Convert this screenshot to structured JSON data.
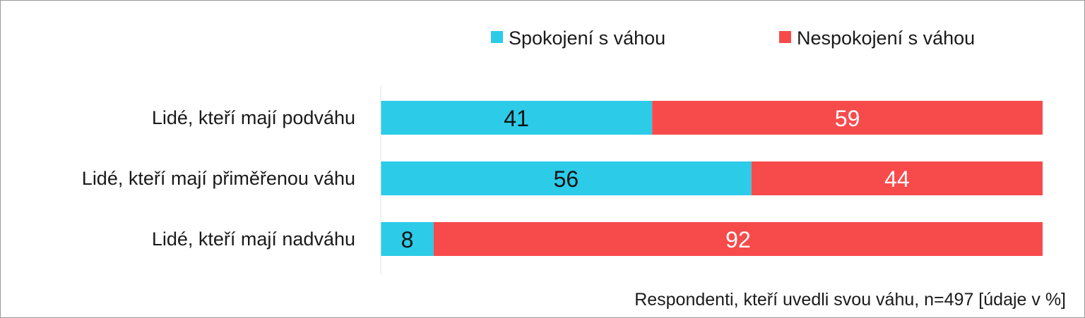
{
  "chart_data": {
    "type": "bar",
    "orientation": "horizontal",
    "stacked": true,
    "categories": [
      "Lidé, kteří mají podváhu",
      "Lidé, kteří mají přiměřenou váhu",
      "Lidé, kteří mají nadváhu"
    ],
    "series": [
      {
        "name": "Spokojení s váhou",
        "values": [
          41,
          56,
          8
        ],
        "color": "#2ccbe8",
        "label_color": "#111111"
      },
      {
        "name": "Nespokojení s váhou",
        "values": [
          59,
          44,
          92
        ],
        "color": "#f74b4b",
        "label_color": "#ffffff"
      }
    ],
    "xlim": [
      0,
      100
    ],
    "grid": false,
    "legend_position": "top-right",
    "note": "Respondenti, kteří uvedli svou váhu, n=497 [údaje v %]"
  }
}
